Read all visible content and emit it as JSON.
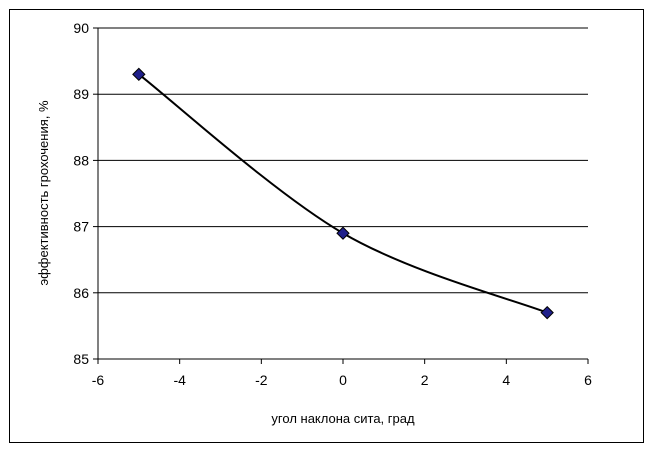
{
  "chart_data": {
    "type": "line",
    "title": "",
    "xlabel": "угол наклона сита, град",
    "ylabel": "эффективность грохочения, %",
    "xlim": [
      -6,
      6
    ],
    "ylim": [
      85,
      90
    ],
    "x_ticks": [
      -6,
      -4,
      -2,
      0,
      2,
      4,
      6
    ],
    "y_ticks": [
      85,
      86,
      87,
      88,
      89,
      90
    ],
    "x_tick_labels": [
      "-6",
      "-4",
      "-2",
      "0",
      "2",
      "4",
      "6"
    ],
    "y_tick_labels": [
      "85",
      "86",
      "87",
      "88",
      "89",
      "90"
    ],
    "grid": "horizontal major gridlines",
    "legend": "none",
    "series": [
      {
        "x": [
          -5,
          0,
          5
        ],
        "values": [
          89.3,
          86.9,
          85.7
        ],
        "line_style": "smoothed",
        "marker": "diamond",
        "marker_color": "#1f1f8a",
        "line_color": "#000000"
      }
    ]
  }
}
